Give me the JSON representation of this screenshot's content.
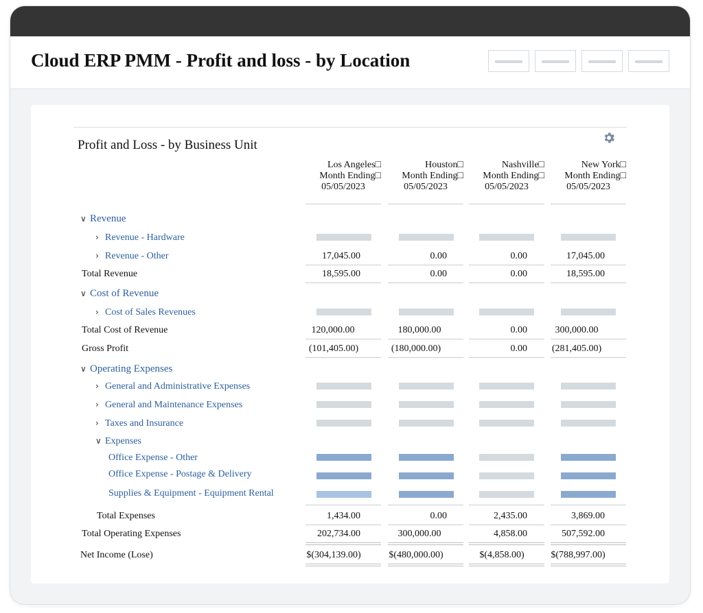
{
  "app": {
    "title": "Cloud ERP PMM - Profit and loss - by Location"
  },
  "report": {
    "title": "Profit and Loss - by Business Unit",
    "columns": [
      {
        "location": "Los Angeles□",
        "period": "Month Ending□",
        "date": "05/05/2023"
      },
      {
        "location": "Houston□",
        "period": "Month Ending□",
        "date": "05/05/2023"
      },
      {
        "location": "Nashville□",
        "period": "Month Ending□",
        "date": "05/05/2023"
      },
      {
        "location": "New York□",
        "period": "Month Ending□",
        "date": "05/05/2023"
      }
    ],
    "rows": {
      "revenue": "Revenue",
      "revenue_hardware": "Revenue - Hardware",
      "revenue_other": "Revenue - Other",
      "revenue_other_values": [
        "17,045.00",
        "0.00",
        "0.00",
        "17,045.00"
      ],
      "total_revenue": "Total Revenue",
      "total_revenue_values": [
        "18,595.00",
        "0.00",
        "0.00",
        "18,595.00"
      ],
      "cost_of_revenue": "Cost of Revenue",
      "cost_of_sales": "Cost of Sales Revenues",
      "total_cost_of_revenue": "Total Cost of Revenue",
      "total_cost_of_revenue_values": [
        "120,000.00",
        "180,000.00",
        "0.00",
        "300,000.00"
      ],
      "gross_profit": "Gross Profit",
      "gross_profit_values": [
        "(101,405.00)",
        "(180,000.00)",
        "0.00",
        "(281,405.00)"
      ],
      "operating_expenses": "Operating Expenses",
      "ga_expenses": "General and Administrative Expenses",
      "gm_expenses": "General and Maintenance Expenses",
      "taxes_insurance": "Taxes and Insurance",
      "expenses": "Expenses",
      "office_other": "Office Expense - Other",
      "office_postage": "Office Expense - Postage & Delivery",
      "supplies_rental": "Supplies & Equipment - Equipment Rental",
      "total_expenses": "Total Expenses",
      "total_expenses_values": [
        "1,434.00",
        "0.00",
        "2,435.00",
        "3,869.00"
      ],
      "total_operating_expenses": "Total Operating Expenses",
      "total_operating_expenses_values": [
        "202,734.00",
        "300,000.00",
        "4,858.00",
        "507,592.00"
      ],
      "net_income": "Net Income (Lose)",
      "net_income_values": [
        "$(304,139.00)",
        "$(480,000.00)",
        "$(4,858.00)",
        "$(788,997.00)"
      ]
    }
  },
  "icons": {
    "settings": "gear-icon",
    "expand": "chevron-down-icon",
    "collapse": "chevron-right-icon"
  },
  "colors": {
    "titlebar": "#343434",
    "link_blue": "#2d5f9b",
    "bar_blue": "#8aa9cf",
    "bar_grey": "#d5dadf"
  }
}
